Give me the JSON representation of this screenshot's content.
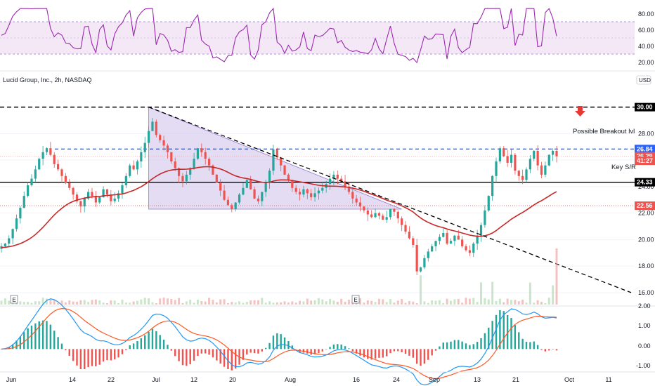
{
  "chart_data": [
    {
      "type": "line",
      "panel": "rsi",
      "ylim": [
        10,
        90
      ],
      "y_ticks": [
        "80.00",
        "60.00",
        "40.00",
        "20.00"
      ],
      "band": [
        30,
        70
      ],
      "colors": {
        "line": "#9c27b0",
        "band": "#e1bee7",
        "band_line": "#9575cd"
      }
    },
    {
      "type": "candlestick",
      "panel": "price",
      "title": "Lucid Group, Inc., 2h, NASDAQ",
      "currency": "USD",
      "ylim": [
        15.2,
        31.2
      ],
      "y_ticks": [
        "30.00",
        "28.00",
        "26.00",
        "24.00",
        "22.00",
        "20.00",
        "18.00",
        "16.00"
      ],
      "x_ticks": [
        "Jun",
        "14",
        "22",
        "Jul",
        "12",
        "20",
        "Aug",
        "16",
        "24",
        "Sep",
        "13",
        "21",
        "Oct",
        "11"
      ],
      "price_badges": [
        {
          "label": "30.00",
          "value": 30.0,
          "color": "#000000"
        },
        {
          "label": "26.84",
          "value": 26.84,
          "color": "#2962ff"
        },
        {
          "label": "26.29",
          "value": 26.29,
          "color": "#ef5350"
        },
        {
          "label": "41:27",
          "value": 25.95,
          "color": "#ef5350"
        },
        {
          "label": "24.33",
          "value": 24.33,
          "color": "#000000"
        },
        {
          "label": "22.56",
          "value": 22.56,
          "color": "#ef5350"
        }
      ],
      "annotations": {
        "breakout_label": "Possible Breakout lvl",
        "support_label": "Key S/R",
        "earnings_markers": [
          "E",
          "E"
        ]
      },
      "levels": {
        "resistance_top": 30.0,
        "breakout": 26.84,
        "key_sr": 24.33,
        "dotted_red": 22.56,
        "last_price": 26.29
      },
      "colors": {
        "up": "#26a69a",
        "down": "#ef5350",
        "ma": "#c62828",
        "triangle_fill": "#d1c4e9"
      },
      "close": [
        19.5,
        19.7,
        20.1,
        20.8,
        21.6,
        22.4,
        23.3,
        24.1,
        24.6,
        25.3,
        26.1,
        26.6,
        26.9,
        26.4,
        25.7,
        25.3,
        24.8,
        24.3,
        23.9,
        23.4,
        22.9,
        22.5,
        23.1,
        23.6,
        23.3,
        22.8,
        23.2,
        23.8,
        23.4,
        22.9,
        23.1,
        23.5,
        24.1,
        24.8,
        25.6,
        25.3,
        25.9,
        26.6,
        27.3,
        28.2,
        28.9,
        27.9,
        27.5,
        27.1,
        26.6,
        25.9,
        25.4,
        24.8,
        24.4,
        24.9,
        25.4,
        26.1,
        26.9,
        26.6,
        26.1,
        25.6,
        24.9,
        24.3,
        23.7,
        23.0,
        22.6,
        22.3,
        22.8,
        23.4,
        23.9,
        24.5,
        23.8,
        23.1,
        22.9,
        23.6,
        24.3,
        25.2,
        26.8,
        26.2,
        25.6,
        24.9,
        24.5,
        23.9,
        23.6,
        23.4,
        23.8,
        23.5,
        23.2,
        23.5,
        23.7,
        23.9,
        24.2,
        24.6,
        24.9,
        24.6,
        24.4,
        24.0,
        23.6,
        23.1,
        22.8,
        22.5,
        22.2,
        21.9,
        21.7,
        22.0,
        21.8,
        21.5,
        21.7,
        22.3,
        22.1,
        21.6,
        21.1,
        20.6,
        20.1,
        19.6,
        17.6,
        17.9,
        18.6,
        19.1,
        19.5,
        19.9,
        20.2,
        20.5,
        19.7,
        19.9,
        20.3,
        20.0,
        19.5,
        19.2,
        19.0,
        19.7,
        20.3,
        21.1,
        22.2,
        23.3,
        24.8,
        25.9,
        26.9,
        26.3,
        25.8,
        26.4,
        25.2,
        24.8,
        24.5,
        25.3,
        26.1,
        26.7,
        25.6,
        24.9,
        25.6,
        26.4,
        26.7,
        26.29
      ],
      "ma": [
        19.4,
        19.42,
        19.46,
        19.52,
        19.6,
        19.7,
        19.83,
        19.98,
        20.16,
        20.38,
        20.64,
        20.92,
        21.24,
        21.56,
        21.86,
        22.13,
        22.37,
        22.58,
        22.75,
        22.89,
        22.99,
        23.06,
        23.13,
        23.19,
        23.22,
        23.24,
        23.26,
        23.3,
        23.33,
        23.36,
        23.38,
        23.41,
        23.45,
        23.52,
        23.62,
        23.72,
        23.85,
        23.99,
        24.17,
        24.38,
        24.6,
        24.79,
        24.95,
        25.08,
        25.18,
        25.25,
        25.29,
        25.31,
        25.31,
        25.32,
        25.34,
        25.38,
        25.44,
        25.48,
        25.5,
        25.5,
        25.47,
        25.41,
        25.33,
        25.22,
        25.08,
        24.93,
        24.81,
        24.72,
        24.65,
        24.61,
        24.54,
        24.46,
        24.38,
        24.33,
        24.31,
        24.33,
        24.42,
        24.48,
        24.51,
        24.51,
        24.5,
        24.46,
        24.41,
        24.36,
        24.32,
        24.27,
        24.21,
        24.15,
        24.1,
        24.07,
        24.04,
        24.03,
        24.03,
        24.02,
        24.0,
        23.98,
        23.94,
        23.89,
        23.82,
        23.74,
        23.65,
        23.54,
        23.43,
        23.33,
        23.22,
        23.1,
        22.98,
        22.88,
        22.79,
        22.68,
        22.55,
        22.41,
        22.26,
        22.09,
        21.85,
        21.63,
        21.45,
        21.3,
        21.17,
        21.06,
        20.97,
        20.9,
        20.8,
        20.72,
        20.65,
        20.58,
        20.5,
        20.42,
        20.34,
        20.29,
        20.25,
        20.25,
        20.29,
        20.37,
        20.5,
        20.68,
        20.9,
        21.11,
        21.32,
        21.54,
        21.72,
        21.89,
        22.05,
        22.23,
        22.42,
        22.62,
        22.79,
        22.94,
        23.11,
        23.29,
        23.47,
        23.62
      ],
      "trendline": {
        "x": [
          0.0,
          1.0
        ],
        "y": [
          30.0,
          16.0
        ]
      },
      "triangle": {
        "top": 30.0,
        "bottom": 22.3
      }
    },
    {
      "type": "line",
      "panel": "macd",
      "ylim": [
        -1.1,
        2.2
      ],
      "y_ticks": [
        "2.00",
        "1.00",
        "0.00",
        "-1.00"
      ],
      "colors": {
        "macd": "#2196f3",
        "signal": "#ff5722",
        "hist_up": "#26a69a",
        "hist_down": "#ef5350"
      }
    }
  ]
}
